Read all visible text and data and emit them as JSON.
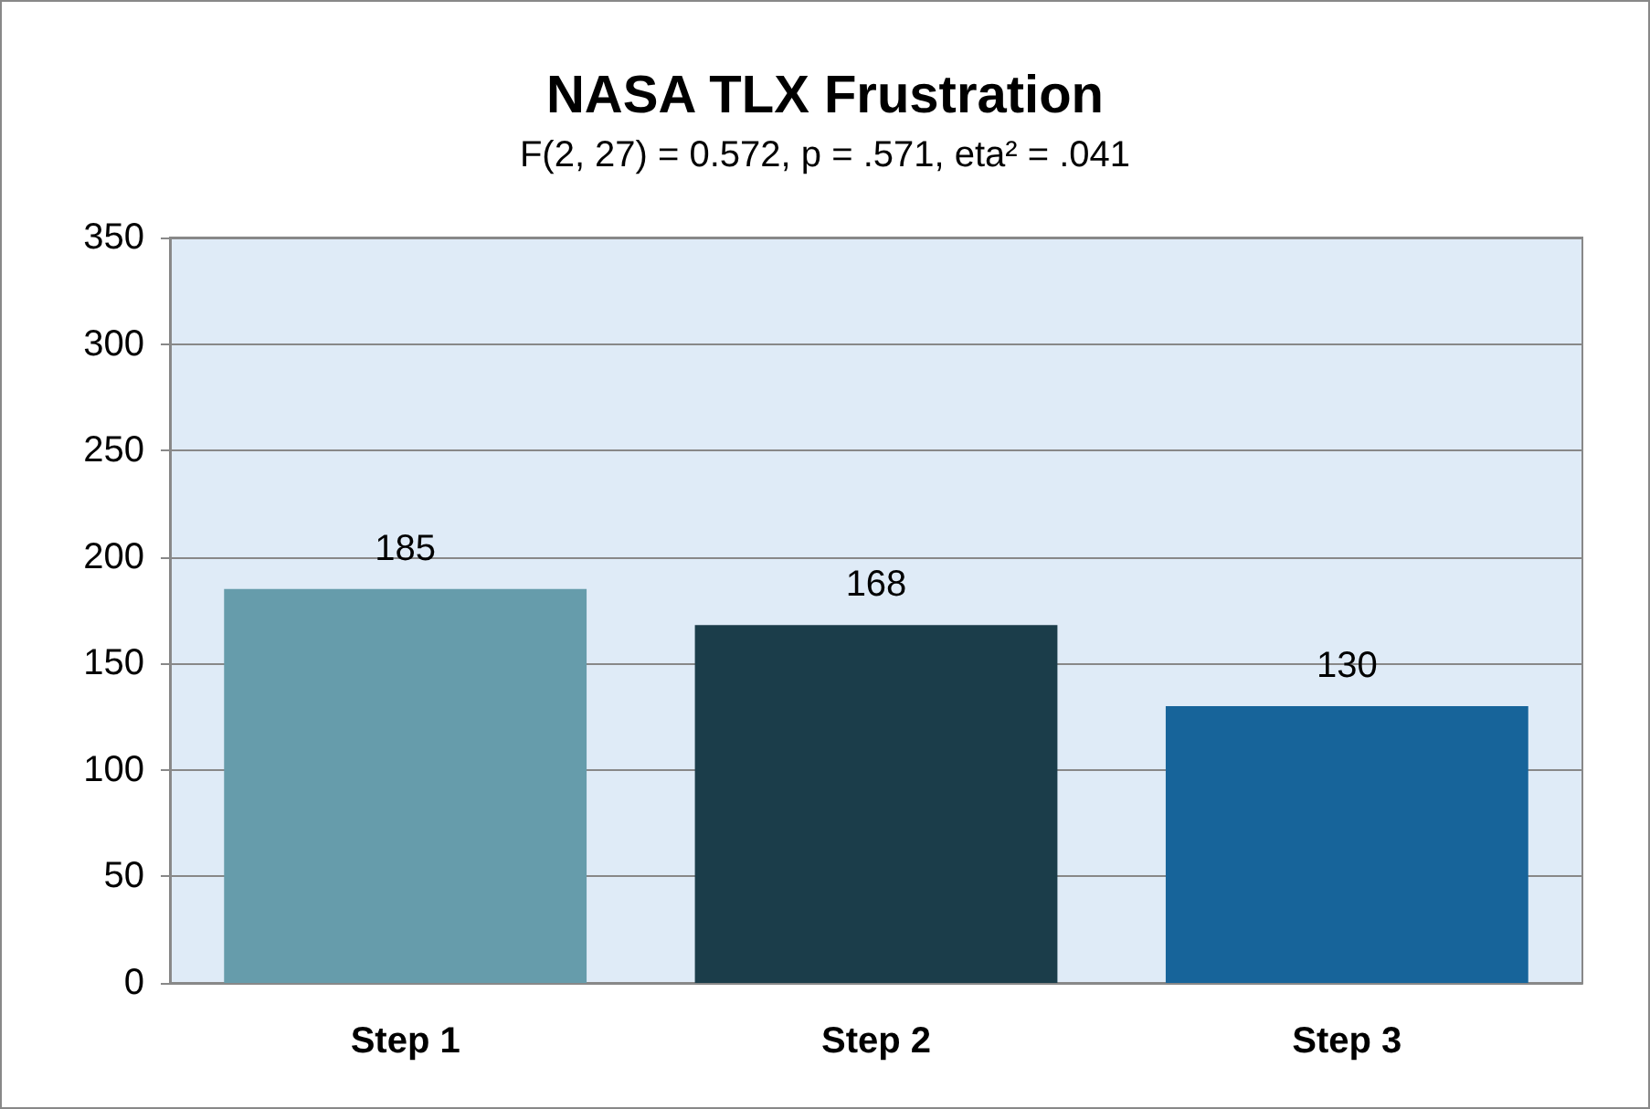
{
  "chart_data": {
    "type": "bar",
    "title": "NASA TLX Frustration",
    "subtitle": "F(2, 27) = 0.572, p = .571, eta² = .041",
    "categories": [
      "Step 1",
      "Step 2",
      "Step 3"
    ],
    "values": [
      185,
      168,
      130
    ],
    "colors": [
      "#669cab",
      "#1b3d4a",
      "#17649a"
    ],
    "ylim": [
      0,
      350
    ],
    "yticks": [
      0,
      50,
      100,
      150,
      200,
      250,
      300,
      350
    ],
    "grid": "y",
    "data_labels": true
  }
}
